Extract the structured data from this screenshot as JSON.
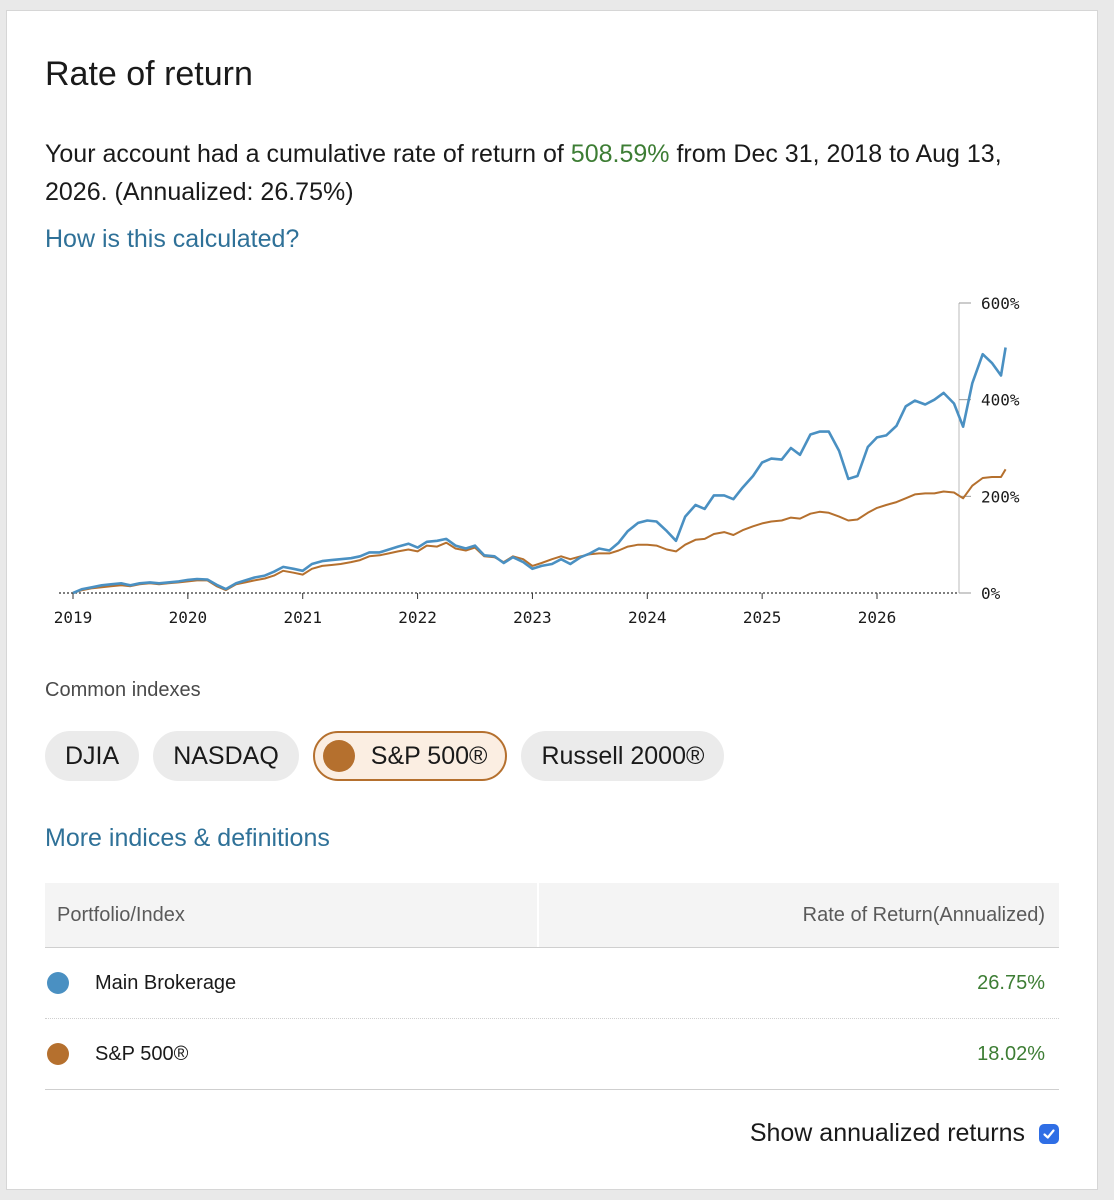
{
  "card": {
    "title": "Rate of return",
    "summary": {
      "prefix": "Your account had a cumulative rate of return of",
      "cumulative": "508.59%",
      "suffix": "from Dec 31, 2018 to Aug 13, 2026. (Annualized: 26.75%)"
    },
    "calc_link": "How is this calculated?"
  },
  "indexes": {
    "label": "Common indexes",
    "chips": [
      {
        "label": "DJIA",
        "active": false
      },
      {
        "label": "NASDAQ",
        "active": false
      },
      {
        "label": "S&P 500®",
        "active": true
      },
      {
        "label": "Russell 2000®",
        "active": false
      }
    ],
    "more_link": "More indices & definitions"
  },
  "table": {
    "col1": "Portfolio/Index",
    "col2": "Rate of Return(Annualized)",
    "rows": [
      {
        "name": "Main Brokerage",
        "value": "26.75%",
        "color": "#4a90c2"
      },
      {
        "name": "S&P 500®",
        "value": "18.02%",
        "color": "#b5702e"
      }
    ]
  },
  "annualized": {
    "label": "Show annualized returns",
    "checked": true
  },
  "chart_data": {
    "type": "line",
    "ylim": [
      0,
      600
    ],
    "yticks": [
      "0%",
      "200%",
      "400%",
      "600%"
    ],
    "ytick_values": [
      0,
      200,
      400,
      600
    ],
    "xlabels": [
      "2019",
      "2020",
      "2021",
      "2022",
      "2023",
      "2024",
      "2025",
      "2026"
    ],
    "xlabel_values": [
      2019,
      2020,
      2021,
      2022,
      2023,
      2024,
      2025,
      2026
    ],
    "xlim": [
      2019,
      2026.75
    ],
    "series": [
      {
        "name": "Main Brokerage",
        "color": "#4a90c2",
        "points": [
          [
            2019.0,
            0
          ],
          [
            2019.08,
            8
          ],
          [
            2019.17,
            12
          ],
          [
            2019.25,
            16
          ],
          [
            2019.33,
            18
          ],
          [
            2019.42,
            20
          ],
          [
            2019.5,
            16
          ],
          [
            2019.58,
            20
          ],
          [
            2019.67,
            22
          ],
          [
            2019.75,
            20
          ],
          [
            2019.83,
            22
          ],
          [
            2019.92,
            24
          ],
          [
            2020.0,
            27
          ],
          [
            2020.08,
            29
          ],
          [
            2020.17,
            28
          ],
          [
            2020.25,
            17
          ],
          [
            2020.33,
            8
          ],
          [
            2020.42,
            20
          ],
          [
            2020.5,
            26
          ],
          [
            2020.58,
            32
          ],
          [
            2020.67,
            36
          ],
          [
            2020.75,
            44
          ],
          [
            2020.83,
            54
          ],
          [
            2020.92,
            50
          ],
          [
            2021.0,
            46
          ],
          [
            2021.08,
            60
          ],
          [
            2021.17,
            66
          ],
          [
            2021.25,
            68
          ],
          [
            2021.33,
            70
          ],
          [
            2021.42,
            72
          ],
          [
            2021.5,
            76
          ],
          [
            2021.58,
            84
          ],
          [
            2021.67,
            84
          ],
          [
            2021.75,
            90
          ],
          [
            2021.83,
            96
          ],
          [
            2021.92,
            102
          ],
          [
            2022.0,
            94
          ],
          [
            2022.08,
            106
          ],
          [
            2022.17,
            108
          ],
          [
            2022.25,
            112
          ],
          [
            2022.33,
            98
          ],
          [
            2022.42,
            92
          ],
          [
            2022.5,
            98
          ],
          [
            2022.58,
            78
          ],
          [
            2022.67,
            76
          ],
          [
            2022.75,
            62
          ],
          [
            2022.83,
            74
          ],
          [
            2022.92,
            64
          ],
          [
            2023.0,
            50
          ],
          [
            2023.08,
            56
          ],
          [
            2023.17,
            60
          ],
          [
            2023.25,
            70
          ],
          [
            2023.33,
            60
          ],
          [
            2023.42,
            74
          ],
          [
            2023.5,
            82
          ],
          [
            2023.58,
            92
          ],
          [
            2023.67,
            88
          ],
          [
            2023.75,
            104
          ],
          [
            2023.83,
            128
          ],
          [
            2023.92,
            145
          ],
          [
            2024.0,
            150
          ],
          [
            2024.08,
            148
          ],
          [
            2024.17,
            128
          ],
          [
            2024.25,
            108
          ],
          [
            2024.33,
            158
          ],
          [
            2024.42,
            182
          ],
          [
            2024.5,
            174
          ],
          [
            2024.58,
            202
          ],
          [
            2024.67,
            202
          ],
          [
            2024.75,
            194
          ],
          [
            2024.83,
            218
          ],
          [
            2024.92,
            242
          ],
          [
            2025.0,
            270
          ],
          [
            2025.08,
            278
          ],
          [
            2025.17,
            276
          ],
          [
            2025.25,
            300
          ],
          [
            2025.33,
            286
          ],
          [
            2025.42,
            328
          ],
          [
            2025.5,
            334
          ],
          [
            2025.58,
            334
          ],
          [
            2025.67,
            294
          ],
          [
            2025.75,
            236
          ],
          [
            2025.83,
            242
          ],
          [
            2025.92,
            302
          ],
          [
            2026.0,
            322
          ],
          [
            2026.08,
            326
          ],
          [
            2026.17,
            346
          ],
          [
            2026.25,
            386
          ],
          [
            2026.33,
            398
          ],
          [
            2026.42,
            390
          ],
          [
            2026.5,
            400
          ],
          [
            2026.58,
            414
          ],
          [
            2026.67,
            392
          ],
          [
            2026.75,
            344
          ],
          [
            2026.83,
            434
          ],
          [
            2026.92,
            494
          ],
          [
            2027.0,
            476
          ],
          [
            2027.08,
            450
          ],
          [
            2027.12,
            508
          ]
        ]
      },
      {
        "name": "S&P 500®",
        "color": "#b5702e",
        "points": [
          [
            2019.0,
            0
          ],
          [
            2019.08,
            6
          ],
          [
            2019.17,
            10
          ],
          [
            2019.25,
            12
          ],
          [
            2019.33,
            14
          ],
          [
            2019.42,
            16
          ],
          [
            2019.5,
            14
          ],
          [
            2019.58,
            18
          ],
          [
            2019.67,
            20
          ],
          [
            2019.75,
            18
          ],
          [
            2019.83,
            20
          ],
          [
            2019.92,
            22
          ],
          [
            2020.0,
            24
          ],
          [
            2020.08,
            26
          ],
          [
            2020.17,
            26
          ],
          [
            2020.25,
            14
          ],
          [
            2020.33,
            6
          ],
          [
            2020.42,
            18
          ],
          [
            2020.5,
            22
          ],
          [
            2020.58,
            26
          ],
          [
            2020.67,
            30
          ],
          [
            2020.75,
            36
          ],
          [
            2020.83,
            46
          ],
          [
            2020.92,
            42
          ],
          [
            2021.0,
            38
          ],
          [
            2021.08,
            50
          ],
          [
            2021.17,
            56
          ],
          [
            2021.25,
            58
          ],
          [
            2021.33,
            60
          ],
          [
            2021.42,
            64
          ],
          [
            2021.5,
            68
          ],
          [
            2021.58,
            76
          ],
          [
            2021.67,
            78
          ],
          [
            2021.75,
            82
          ],
          [
            2021.83,
            86
          ],
          [
            2021.92,
            90
          ],
          [
            2022.0,
            86
          ],
          [
            2022.08,
            98
          ],
          [
            2022.17,
            96
          ],
          [
            2022.25,
            104
          ],
          [
            2022.33,
            92
          ],
          [
            2022.42,
            88
          ],
          [
            2022.5,
            94
          ],
          [
            2022.58,
            76
          ],
          [
            2022.67,
            74
          ],
          [
            2022.75,
            64
          ],
          [
            2022.83,
            76
          ],
          [
            2022.92,
            70
          ],
          [
            2023.0,
            56
          ],
          [
            2023.08,
            62
          ],
          [
            2023.17,
            70
          ],
          [
            2023.25,
            76
          ],
          [
            2023.33,
            70
          ],
          [
            2023.42,
            76
          ],
          [
            2023.5,
            80
          ],
          [
            2023.58,
            82
          ],
          [
            2023.67,
            82
          ],
          [
            2023.75,
            88
          ],
          [
            2023.83,
            96
          ],
          [
            2023.92,
            100
          ],
          [
            2024.0,
            100
          ],
          [
            2024.08,
            98
          ],
          [
            2024.17,
            90
          ],
          [
            2024.25,
            86
          ],
          [
            2024.33,
            100
          ],
          [
            2024.42,
            110
          ],
          [
            2024.5,
            112
          ],
          [
            2024.58,
            122
          ],
          [
            2024.67,
            126
          ],
          [
            2024.75,
            120
          ],
          [
            2024.83,
            130
          ],
          [
            2024.92,
            138
          ],
          [
            2025.0,
            144
          ],
          [
            2025.08,
            148
          ],
          [
            2025.17,
            150
          ],
          [
            2025.25,
            156
          ],
          [
            2025.33,
            154
          ],
          [
            2025.42,
            164
          ],
          [
            2025.5,
            168
          ],
          [
            2025.58,
            166
          ],
          [
            2025.67,
            158
          ],
          [
            2025.75,
            150
          ],
          [
            2025.83,
            152
          ],
          [
            2025.92,
            166
          ],
          [
            2026.0,
            176
          ],
          [
            2026.08,
            182
          ],
          [
            2026.17,
            188
          ],
          [
            2026.25,
            196
          ],
          [
            2026.33,
            204
          ],
          [
            2026.42,
            206
          ],
          [
            2026.5,
            206
          ],
          [
            2026.58,
            210
          ],
          [
            2026.67,
            208
          ],
          [
            2026.75,
            196
          ],
          [
            2026.83,
            222
          ],
          [
            2026.92,
            238
          ],
          [
            2027.0,
            240
          ],
          [
            2027.08,
            240
          ],
          [
            2027.12,
            256
          ]
        ]
      }
    ]
  }
}
